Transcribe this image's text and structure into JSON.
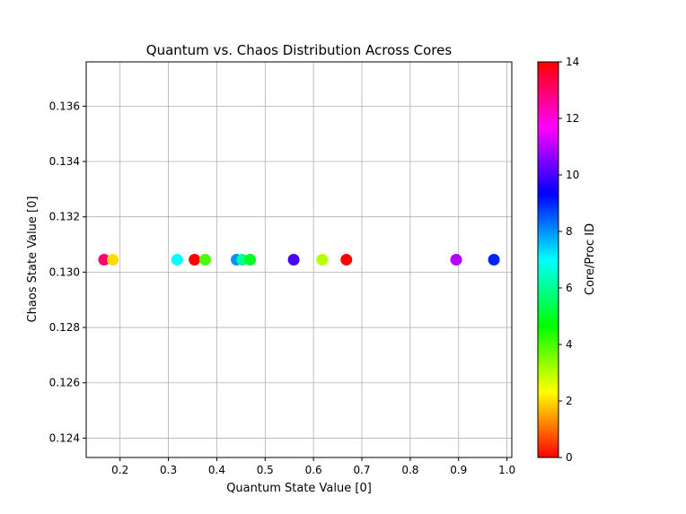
{
  "chart_data": {
    "type": "scatter",
    "title": "Quantum vs. Chaos Distribution Across Cores",
    "xlabel": "Quantum State Value [0]",
    "ylabel": "Chaos State Value [0]",
    "xlim": [
      0.13,
      1.01
    ],
    "ylim": [
      0.1233,
      0.1376
    ],
    "xticks": [
      0.2,
      0.3,
      0.4,
      0.5,
      0.6,
      0.7,
      0.8,
      0.9,
      1.0
    ],
    "xtick_labels": [
      "0.2",
      "0.3",
      "0.4",
      "0.5",
      "0.6",
      "0.7",
      "0.8",
      "0.9",
      "1.0"
    ],
    "yticks": [
      0.124,
      0.126,
      0.128,
      0.13,
      0.132,
      0.134,
      0.136
    ],
    "ytick_labels": [
      "0.124",
      "0.126",
      "0.128",
      "0.130",
      "0.132",
      "0.134",
      "0.136"
    ],
    "grid": true,
    "colorbar": {
      "label": "Core/Proc ID",
      "colormap": "hsv",
      "range": [
        0,
        14
      ],
      "ticks": [
        0,
        2,
        4,
        6,
        8,
        10,
        12,
        14
      ],
      "tick_labels": [
        "0",
        "2",
        "4",
        "6",
        "8",
        "10",
        "12",
        "14"
      ]
    },
    "points": [
      {
        "x": 0.167,
        "y": 0.13045,
        "c": 13
      },
      {
        "x": 0.185,
        "y": 0.13045,
        "c": 2
      },
      {
        "x": 0.318,
        "y": 0.13045,
        "c": 7
      },
      {
        "x": 0.354,
        "y": 0.13045,
        "c": 0
      },
      {
        "x": 0.376,
        "y": 0.13045,
        "c": 4
      },
      {
        "x": 0.441,
        "y": 0.13045,
        "c": 8
      },
      {
        "x": 0.453,
        "y": 0.13045,
        "c": 6
      },
      {
        "x": 0.469,
        "y": 0.13045,
        "c": 5
      },
      {
        "x": 0.559,
        "y": 0.13045,
        "c": 10
      },
      {
        "x": 0.618,
        "y": 0.13045,
        "c": 3
      },
      {
        "x": 0.668,
        "y": 0.13045,
        "c": 14
      },
      {
        "x": 0.895,
        "y": 0.13045,
        "c": 11
      },
      {
        "x": 0.973,
        "y": 0.13045,
        "c": 9
      }
    ]
  }
}
